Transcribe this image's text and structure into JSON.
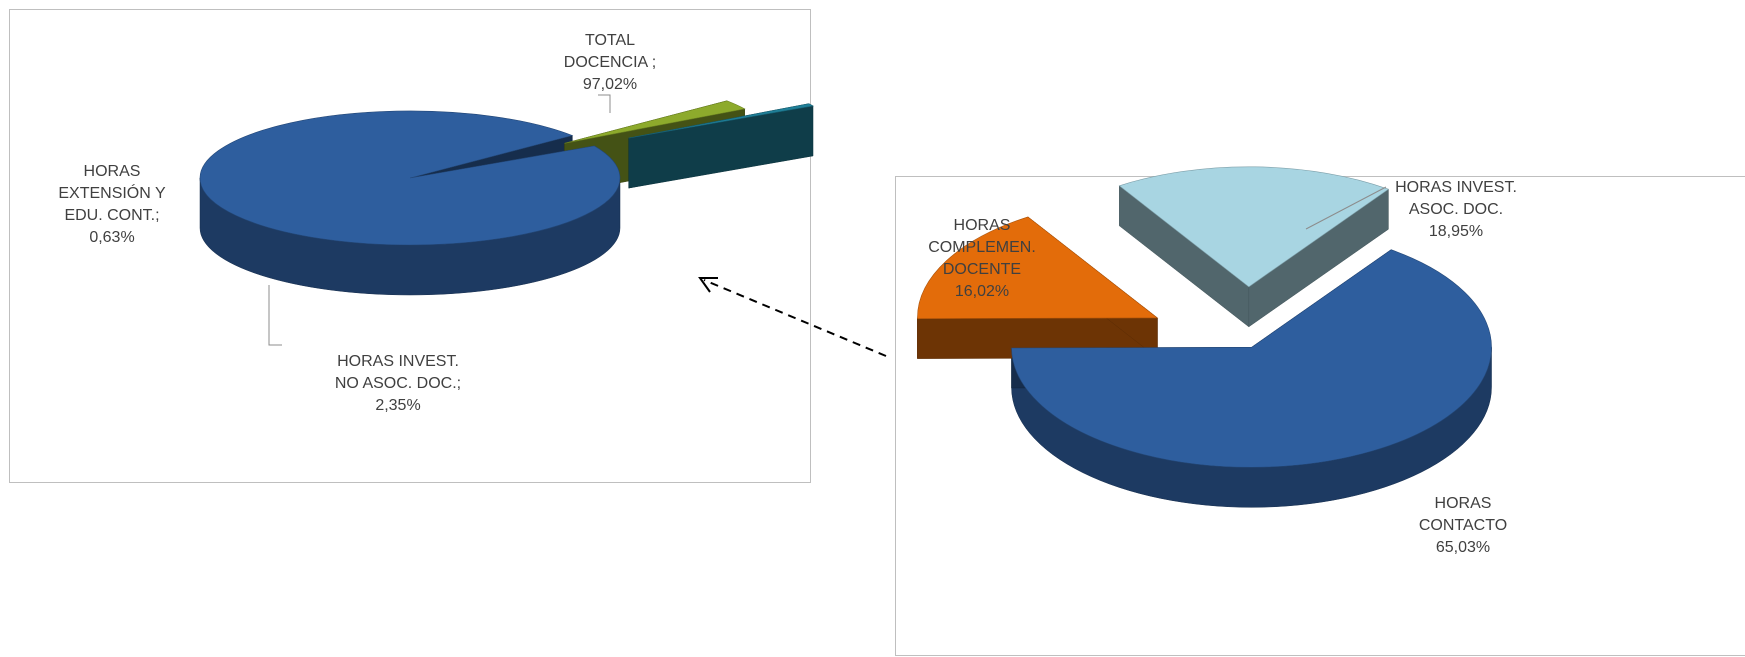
{
  "colors": {
    "dark_blue": "#2E5E9E",
    "olive_green": "#8DAA2C",
    "teal": "#1F7F98",
    "orange": "#E36C0A",
    "light_blue": "#A8D5E2"
  },
  "chart_data": [
    {
      "type": "pie",
      "style": "3d-exploded",
      "legend": "none",
      "slices": [
        {
          "name": "TOTAL DOCENCIA",
          "value": 97.02,
          "value_label": "97,02%",
          "label_lines": [
            "TOTAL",
            "DOCENCIA ;",
            "97,02%"
          ],
          "color": "#2E5E9E"
        },
        {
          "name": "HORAS INVEST. NO ASOC. DOC.",
          "value": 2.35,
          "value_label": "2,35%",
          "label_lines": [
            "HORAS INVEST.",
            "NO ASOC. DOC.;",
            "2,35%"
          ],
          "color": "#8DAA2C"
        },
        {
          "name": "HORAS EXTENSIÓN Y EDU. CONT.",
          "value": 0.63,
          "value_label": "0,63%",
          "label_lines": [
            "HORAS",
            "EXTENSIÓN Y",
            "EDU. CONT.;",
            "0,63%"
          ],
          "color": "#1F7F98"
        }
      ]
    },
    {
      "type": "pie",
      "style": "3d-exploded",
      "legend": "none",
      "slices": [
        {
          "name": "HORAS CONTACTO",
          "value": 65.03,
          "value_label": "65,03%",
          "label_lines": [
            "HORAS",
            "CONTACTO",
            "65,03%"
          ],
          "color": "#2E5E9E"
        },
        {
          "name": "HORAS COMPLEMEN. DOCENTE",
          "value": 16.02,
          "value_label": "16,02%",
          "label_lines": [
            "HORAS",
            "COMPLEMEN.",
            "DOCENTE",
            "16,02%"
          ],
          "color": "#E36C0A"
        },
        {
          "name": "HORAS INVEST. ASOC. DOC.",
          "value": 18.95,
          "value_label": "18,95%",
          "label_lines": [
            "HORAS INVEST.",
            "ASOC. DOC.",
            "18,95%"
          ],
          "color": "#A8D5E2"
        }
      ]
    }
  ]
}
